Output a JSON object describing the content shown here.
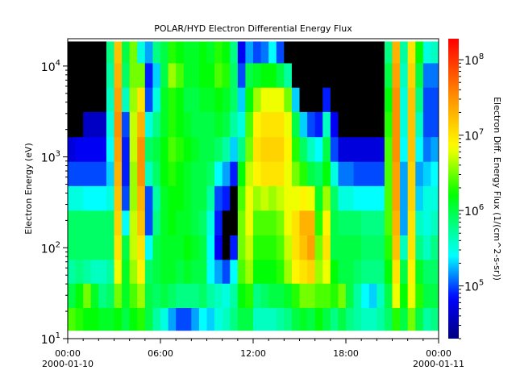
{
  "chart_data": {
    "type": "heatmap",
    "title": "POLAR/HYD  Electron Differential Energy Flux",
    "xlabel": "",
    "ylabel": "Electron Energy (eV)",
    "colorbar_label": "Electron Diff. Energy Flux (1/(cm^2-s-sr))",
    "x_ticks": [
      {
        "label": "00:00",
        "date": "2000-01-10",
        "hour": 0
      },
      {
        "label": "06:00",
        "date": "",
        "hour": 6
      },
      {
        "label": "12:00",
        "date": "",
        "hour": 12
      },
      {
        "label": "18:00",
        "date": "",
        "hour": 18
      },
      {
        "label": "00:00",
        "date": "2000-01-11",
        "hour": 24
      }
    ],
    "xlim_hours": [
      0,
      24
    ],
    "y_scale": "log",
    "ylim": [
      10,
      20000
    ],
    "y_ticks": [
      {
        "base": "10",
        "exp": "1",
        "value": 10
      },
      {
        "base": "10",
        "exp": "2",
        "value": 100
      },
      {
        "base": "10",
        "exp": "3",
        "value": 1000
      },
      {
        "base": "10",
        "exp": "4",
        "value": 10000
      }
    ],
    "color_scale": "log",
    "clim": [
      20000,
      190000000
    ],
    "colorbar_ticks": [
      {
        "base": "10",
        "exp": "5",
        "value": 100000
      },
      {
        "base": "10",
        "exp": "6",
        "value": 1000000
      },
      {
        "base": "10",
        "exp": "7",
        "value": 10000000
      },
      {
        "base": "10",
        "exp": "8",
        "value": 100000000
      }
    ],
    "colormap": [
      {
        "log_flux": 4.31,
        "color": "#00007f"
      },
      {
        "log_flux": 4.84,
        "color": "#0000ff"
      },
      {
        "log_flux": 5.4,
        "color": "#00ffff"
      },
      {
        "log_flux": 6.22,
        "color": "#00ff00"
      },
      {
        "log_flux": 6.84,
        "color": "#ffff00"
      },
      {
        "log_flux": 7.5,
        "color": "#ff9000"
      },
      {
        "log_flux": 8.27,
        "color": "#ff0000"
      }
    ],
    "fill_color_no_data": "#000000",
    "time_bin_minutes": 30,
    "energy_bins_eV": [
      16,
      30,
      55,
      100,
      190,
      350,
      660,
      1200,
      2300,
      4300,
      7900,
      14800
    ],
    "log10_flux_by_time_bin": [
      [
        6.4,
        6.0,
        5.7,
        5.9,
        5.9,
        5.5,
        5.0,
        4.7,
        null,
        null,
        null,
        null
      ],
      [
        6.3,
        6.2,
        5.8,
        5.9,
        5.9,
        5.5,
        5.0,
        4.8,
        null,
        null,
        null,
        null
      ],
      [
        6.2,
        6.5,
        5.7,
        5.9,
        5.9,
        5.4,
        5.0,
        4.8,
        4.6,
        null,
        null,
        null
      ],
      [
        6.2,
        6.1,
        5.6,
        5.9,
        5.9,
        5.4,
        5.0,
        4.8,
        4.6,
        null,
        null,
        null
      ],
      [
        6.1,
        5.8,
        5.6,
        5.9,
        5.9,
        5.4,
        5.0,
        4.8,
        4.6,
        null,
        null,
        null
      ],
      [
        6.1,
        5.9,
        5.7,
        5.9,
        5.9,
        5.5,
        5.3,
        5.4,
        5.5,
        5.6,
        5.7,
        5.8
      ],
      [
        6.2,
        6.5,
        6.8,
        7.0,
        7.1,
        7.2,
        7.3,
        7.4,
        7.5,
        7.4,
        7.3,
        7.2
      ],
      [
        6.0,
        6.1,
        6.1,
        6.0,
        5.4,
        5.0,
        4.9,
        4.9,
        5.0,
        5.6,
        5.9,
        6.0
      ],
      [
        6.2,
        6.4,
        6.6,
        6.7,
        6.7,
        6.6,
        6.6,
        6.7,
        6.7,
        6.6,
        6.5,
        6.5
      ],
      [
        6.3,
        6.6,
        6.9,
        7.0,
        7.2,
        7.3,
        7.5,
        7.5,
        7.3,
        7.0,
        6.5,
        5.5
      ],
      [
        6.0,
        6.0,
        5.9,
        5.4,
        5.0,
        5.0,
        5.6,
        5.9,
        5.5,
        5.0,
        4.9,
        5.2
      ],
      [
        5.7,
        5.9,
        6.0,
        6.0,
        5.8,
        5.7,
        5.9,
        6.0,
        5.8,
        5.5,
        5.3,
        5.8
      ],
      [
        5.5,
        6.0,
        6.1,
        6.1,
        6.1,
        6.1,
        6.2,
        6.2,
        6.1,
        6.1,
        6.0,
        6.0
      ],
      [
        5.2,
        5.9,
        6.1,
        6.1,
        6.2,
        6.2,
        6.3,
        6.4,
        6.3,
        6.3,
        6.6,
        6.3
      ],
      [
        5.0,
        5.8,
        6.0,
        6.1,
        6.1,
        6.2,
        6.2,
        6.3,
        6.2,
        6.2,
        6.4,
        6.2
      ],
      [
        5.0,
        5.8,
        6.1,
        6.2,
        6.1,
        6.1,
        6.1,
        6.2,
        6.1,
        6.0,
        6.1,
        6.1
      ],
      [
        5.2,
        5.8,
        6.0,
        6.1,
        6.0,
        6.0,
        6.0,
        6.1,
        6.0,
        6.0,
        6.1,
        6.1
      ],
      [
        5.4,
        5.9,
        6.0,
        6.0,
        5.9,
        6.0,
        6.0,
        6.0,
        6.0,
        6.1,
        6.2,
        6.2
      ],
      [
        5.3,
        5.7,
        5.4,
        5.4,
        5.5,
        5.7,
        5.9,
        6.0,
        6.0,
        6.1,
        6.2,
        6.1
      ],
      [
        5.5,
        5.6,
        5.2,
        4.8,
        4.9,
        5.0,
        5.4,
        5.9,
        6.1,
        6.2,
        6.4,
        6.3
      ],
      [
        5.6,
        5.5,
        5.0,
        null,
        null,
        4.9,
        5.2,
        5.7,
        6.0,
        6.1,
        6.3,
        6.2
      ],
      [
        5.8,
        5.7,
        5.4,
        4.9,
        null,
        null,
        4.9,
        5.3,
        5.7,
        5.9,
        5.9,
        5.8
      ],
      [
        6.0,
        6.2,
        6.4,
        6.5,
        6.5,
        6.4,
        6.2,
        5.8,
        5.5,
        5.3,
        5.0,
        4.8
      ],
      [
        6.0,
        6.3,
        6.6,
        6.7,
        6.8,
        6.8,
        6.7,
        6.5,
        6.4,
        6.2,
        6.0,
        5.2
      ],
      [
        5.6,
        5.8,
        6.2,
        6.3,
        6.4,
        6.6,
        6.9,
        7.0,
        6.9,
        6.6,
        6.1,
        5.0
      ],
      [
        5.6,
        5.9,
        6.2,
        6.3,
        6.4,
        6.7,
        7.0,
        7.1,
        7.0,
        6.8,
        6.2,
        5.1
      ],
      [
        5.6,
        6.0,
        6.2,
        6.3,
        6.4,
        6.6,
        7.0,
        7.1,
        7.0,
        6.8,
        6.2,
        5.4
      ],
      [
        5.7,
        6.0,
        6.3,
        6.4,
        6.5,
        6.7,
        7.0,
        7.1,
        7.0,
        6.8,
        6.0,
        5.0
      ],
      [
        5.8,
        6.1,
        6.6,
        6.7,
        6.8,
        6.8,
        6.8,
        6.9,
        6.8,
        6.5,
        5.7,
        null
      ],
      [
        6.0,
        6.3,
        6.9,
        7.0,
        7.0,
        6.8,
        6.5,
        6.3,
        6.0,
        5.3,
        null,
        null
      ],
      [
        6.1,
        6.5,
        7.0,
        7.2,
        7.3,
        6.9,
        6.3,
        5.9,
        5.3,
        null,
        null,
        null
      ],
      [
        6.0,
        6.5,
        7.1,
        7.4,
        7.3,
        6.8,
        6.0,
        5.6,
        5.0,
        null,
        null,
        null
      ],
      [
        6.2,
        6.4,
        6.6,
        6.5,
        6.3,
        6.1,
        5.9,
        5.4,
        4.9,
        null,
        null,
        null
      ],
      [
        6.0,
        6.4,
        6.8,
        7.0,
        6.9,
        6.6,
        6.2,
        6.0,
        5.6,
        4.9,
        null,
        null
      ],
      [
        5.8,
        6.3,
        6.2,
        6.0,
        6.0,
        5.9,
        5.5,
        5.0,
        4.8,
        null,
        null,
        null
      ],
      [
        6.0,
        6.5,
        6.0,
        6.0,
        5.9,
        5.5,
        5.1,
        4.7,
        null,
        null,
        null,
        null
      ],
      [
        5.8,
        6.0,
        6.0,
        6.0,
        5.9,
        5.5,
        5.1,
        4.7,
        null,
        null,
        null,
        null
      ],
      [
        5.7,
        5.7,
        5.9,
        6.0,
        5.9,
        5.4,
        5.0,
        4.7,
        null,
        null,
        null,
        null
      ],
      [
        5.6,
        5.4,
        5.8,
        5.9,
        5.8,
        5.4,
        5.0,
        4.7,
        null,
        null,
        null,
        null
      ],
      [
        5.6,
        5.3,
        5.8,
        5.9,
        5.8,
        5.4,
        5.0,
        4.7,
        null,
        null,
        null,
        null
      ],
      [
        5.7,
        5.6,
        5.8,
        5.9,
        5.8,
        5.4,
        5.0,
        4.7,
        null,
        null,
        null,
        null
      ],
      [
        5.9,
        6.0,
        6.2,
        6.3,
        6.4,
        6.4,
        6.4,
        6.4,
        6.3,
        6.2,
        6.0,
        5.8
      ],
      [
        6.3,
        6.8,
        7.0,
        7.2,
        7.3,
        7.4,
        7.4,
        7.5,
        7.5,
        7.5,
        7.4,
        7.3
      ],
      [
        6.0,
        6.2,
        6.0,
        5.6,
        5.2,
        5.2,
        5.2,
        5.4,
        5.5,
        5.5,
        5.6,
        5.7
      ],
      [
        6.5,
        6.8,
        6.9,
        7.0,
        7.0,
        7.1,
        7.1,
        7.2,
        7.2,
        7.2,
        7.1,
        7.0
      ],
      [
        6.0,
        6.3,
        6.1,
        5.8,
        5.6,
        5.3,
        5.2,
        5.4,
        5.6,
        5.8,
        6.0,
        6.2
      ],
      [
        5.7,
        6.0,
        5.9,
        5.6,
        5.5,
        5.5,
        5.3,
        5.1,
        5.0,
        5.0,
        5.1,
        5.5
      ],
      [
        5.8,
        6.0,
        5.9,
        5.8,
        5.6,
        5.5,
        5.4,
        5.2,
        5.0,
        5.0,
        5.1,
        5.6
      ]
    ]
  }
}
